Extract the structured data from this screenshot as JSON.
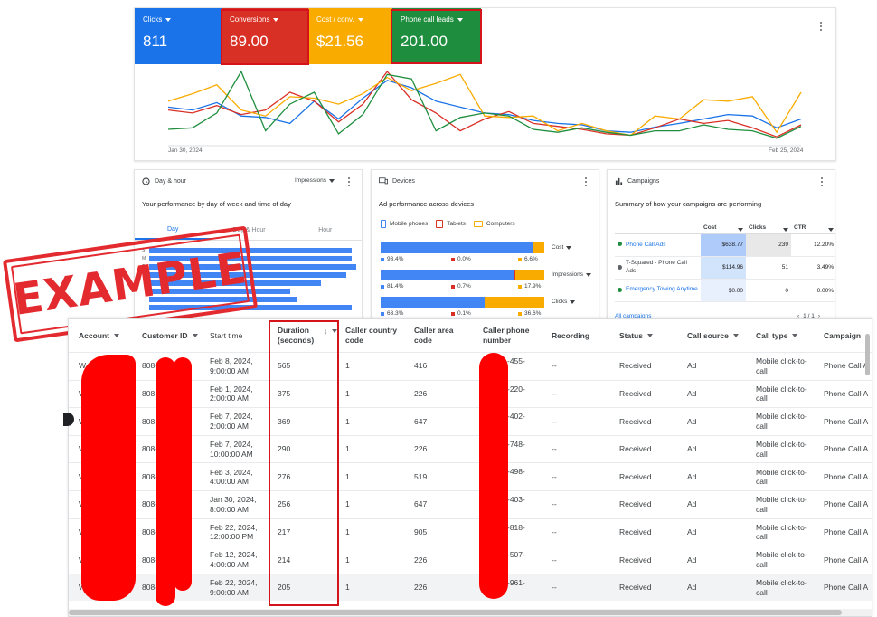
{
  "metrics": [
    {
      "label": "Clicks",
      "value": "811",
      "color": "#1a73e8"
    },
    {
      "label": "Conversions",
      "value": "89.00",
      "color": "#d93025"
    },
    {
      "label": "Cost / conv.",
      "value": "$21.56",
      "color": "#f9ab00"
    },
    {
      "label": "Phone call leads",
      "value": "201.00",
      "color": "#1e8e3e"
    }
  ],
  "overview": {
    "start_date": "Jan 30, 2024",
    "end_date": "Feb 25, 2024"
  },
  "chart_data": {
    "type": "line",
    "title": "",
    "xlabel": "",
    "ylabel": "",
    "x": [
      "Jan 30, 2024",
      "",
      "",
      "",
      "",
      "",
      "",
      "",
      "",
      "",
      "",
      "",
      "",
      "",
      "",
      "",
      "",
      "",
      "",
      "",
      "",
      "",
      "",
      "",
      "",
      "",
      "Feb 25, 2024"
    ],
    "series": [
      {
        "name": "Clicks",
        "color": "#1a73e8",
        "values": [
          52,
          48,
          58,
          40,
          38,
          30,
          60,
          36,
          64,
          88,
          78,
          60,
          52,
          44,
          42,
          34,
          30,
          28,
          20,
          18,
          25,
          30,
          36,
          42,
          40,
          24,
          36
        ]
      },
      {
        "name": "Conversions",
        "color": "#d93025",
        "values": [
          48,
          44,
          54,
          42,
          48,
          72,
          60,
          32,
          56,
          100,
          62,
          44,
          20,
          36,
          46,
          30,
          26,
          22,
          16,
          14,
          24,
          36,
          30,
          34,
          24,
          12,
          28
        ]
      },
      {
        "name": "Cost / conv.",
        "color": "#f9ab00",
        "values": [
          60,
          70,
          82,
          48,
          40,
          66,
          64,
          56,
          70,
          92,
          74,
          84,
          96,
          40,
          38,
          40,
          20,
          30,
          20,
          14,
          40,
          36,
          62,
          60,
          66,
          18,
          72
        ]
      },
      {
        "name": "Phone call leads",
        "color": "#1e8e3e",
        "values": [
          22,
          24,
          44,
          100,
          20,
          56,
          72,
          16,
          42,
          96,
          90,
          20,
          38,
          44,
          40,
          22,
          18,
          24,
          18,
          14,
          20,
          20,
          28,
          22,
          20,
          10,
          26
        ]
      }
    ]
  },
  "dayhour": {
    "title": "Day & hour",
    "metric": "Impressions",
    "subtitle": "Your performance by day of week and time of day",
    "tabs": [
      "Day",
      "Day & Hour",
      "Hour"
    ],
    "row_letters": [
      "S",
      "M",
      "T"
    ],
    "bars": [
      0.86,
      0.86,
      0.88,
      0.84,
      0.73,
      0.6,
      0.63,
      0.86
    ]
  },
  "devices": {
    "title": "Devices",
    "subtitle": "Ad performance across devices",
    "legend": [
      {
        "label": "Mobile phones",
        "color": "#4285f4"
      },
      {
        "label": "Tablets",
        "color": "#d93025"
      },
      {
        "label": "Computers",
        "color": "#f9ab00"
      }
    ],
    "rows": [
      {
        "metric": "Cost",
        "mobile": "93.4%",
        "tablet": "0.0%",
        "computer": "6.6%",
        "m": 93.4,
        "t": 0.0,
        "c": 6.6
      },
      {
        "metric": "Impressions",
        "mobile": "81.4%",
        "tablet": "0.7%",
        "computer": "17.9%",
        "m": 81.4,
        "t": 0.7,
        "c": 17.9
      },
      {
        "metric": "Clicks",
        "mobile": "63.3%",
        "tablet": "0.1%",
        "computer": "36.6%",
        "m": 63.3,
        "t": 0.1,
        "c": 36.6
      }
    ]
  },
  "campaigns": {
    "title": "Campaigns",
    "subtitle": "Summary of how your campaigns are performing",
    "headers": [
      "Cost",
      "Clicks",
      "CTR"
    ],
    "rows": [
      {
        "name": "Phone Call Ads",
        "cost": "$638.77",
        "clicks": "239",
        "ctr": "12.20%",
        "status_color": "#1e8e3e",
        "linked": true
      },
      {
        "name": "T-Squared - Phone Call Ads",
        "cost": "$114.96",
        "clicks": "51",
        "ctr": "3.49%",
        "status_color": "#5f6368",
        "linked": false
      },
      {
        "name": "Emergency Towing Anytime",
        "cost": "$0.00",
        "clicks": "0",
        "ctr": "0.00%",
        "status_color": "#1e8e3e",
        "linked": true
      }
    ],
    "all_link": "All campaigns",
    "pagination": "1 / 1"
  },
  "stamp": "EXAMPLE",
  "calls": {
    "headers": {
      "account": "Account",
      "customer_id": "Customer ID",
      "start_time": "Start time",
      "duration": "Duration (seconds)",
      "country": "Caller country code",
      "area": "Caller area code",
      "phone": "Caller phone number",
      "recording": "Recording",
      "status": "Status",
      "source": "Call source",
      "type": "Call type",
      "campaign": "Campaign"
    },
    "rows": [
      {
        "account": "W",
        "cid": "808-",
        "start1": "Feb 8, 2024,",
        "start2": "9:00:00 AM",
        "duration": "565",
        "country": "1",
        "area": "416",
        "phone": "-455-",
        "recording": "--",
        "status": "Received",
        "source": "Ad",
        "type1": "Mobile click-to-",
        "type2": "call",
        "campaign": "Phone Call A"
      },
      {
        "account": "W",
        "cid": "808-",
        "start1": "Feb 1, 2024,",
        "start2": "2:00:00 AM",
        "duration": "375",
        "country": "1",
        "area": "226",
        "phone": "-220-",
        "recording": "--",
        "status": "Received",
        "source": "Ad",
        "type1": "Mobile click-to-",
        "type2": "call",
        "campaign": "Phone Call A"
      },
      {
        "account": "W",
        "cid": "808-",
        "start1": "Feb 7, 2024,",
        "start2": "2:00:00 AM",
        "duration": "369",
        "country": "1",
        "area": "647",
        "phone": "-402-",
        "recording": "--",
        "status": "Received",
        "source": "Ad",
        "type1": "Mobile click-to-",
        "type2": "call",
        "campaign": "Phone Call A"
      },
      {
        "account": "W",
        "cid": "808-",
        "start1": "Feb 7, 2024,",
        "start2": "10:00:00 AM",
        "duration": "290",
        "country": "1",
        "area": "226",
        "phone": "-748-",
        "recording": "--",
        "status": "Received",
        "source": "Ad",
        "type1": "Mobile click-to-",
        "type2": "call",
        "campaign": "Phone Call A"
      },
      {
        "account": "W",
        "cid": "808-",
        "start1": "Feb 3, 2024,",
        "start2": "4:00:00 AM",
        "duration": "276",
        "country": "1",
        "area": "519",
        "phone": "-498-",
        "recording": "--",
        "status": "Received",
        "source": "Ad",
        "type1": "Mobile click-to-",
        "type2": "call",
        "campaign": "Phone Call A"
      },
      {
        "account": "W",
        "cid": "808-",
        "start1": "Jan 30, 2024,",
        "start2": "8:00:00 AM",
        "duration": "256",
        "country": "1",
        "area": "647",
        "phone": "-403-",
        "recording": "--",
        "status": "Received",
        "source": "Ad",
        "type1": "Mobile click-to-",
        "type2": "call",
        "campaign": "Phone Call A"
      },
      {
        "account": "W",
        "cid": "808-",
        "start1": "Feb 22, 2024,",
        "start2": "12:00:00 PM",
        "duration": "217",
        "country": "1",
        "area": "905",
        "phone": "-818-",
        "recording": "--",
        "status": "Received",
        "source": "Ad",
        "type1": "Mobile click-to-",
        "type2": "call",
        "campaign": "Phone Call A"
      },
      {
        "account": "W",
        "cid": "808-",
        "start1": "Feb 12, 2024,",
        "start2": "4:00:00 AM",
        "duration": "214",
        "country": "1",
        "area": "226",
        "phone": "-507-",
        "recording": "--",
        "status": "Received",
        "source": "Ad",
        "type1": "Mobile click-to-",
        "type2": "call",
        "campaign": "Phone Call A"
      },
      {
        "account": "W",
        "cid": "808-",
        "start1": "Feb 22, 2024,",
        "start2": "9:00:00 AM",
        "duration": "205",
        "country": "1",
        "area": "226",
        "phone": "-961-",
        "recording": "--",
        "status": "Received",
        "source": "Ad",
        "type1": "Mobile click-to-",
        "type2": "call",
        "campaign": "Phone Call A"
      }
    ]
  }
}
